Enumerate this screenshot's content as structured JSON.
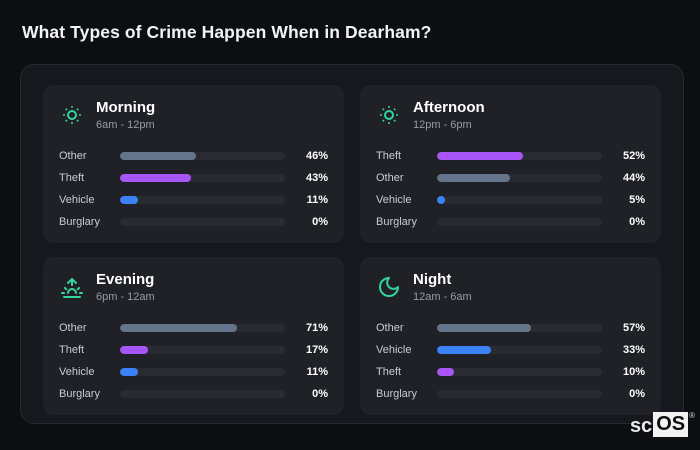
{
  "page": {
    "title": "What Types of Crime Happen When in Dearham?"
  },
  "brand": {
    "prefix": "sc",
    "suffix": "OS",
    "reg": "®"
  },
  "colors": {
    "accent": "#34d399",
    "other": "#64748b",
    "theft": "#a855f7",
    "vehicle": "#3b82f6",
    "track": "#292b31",
    "card_bg": "#1f2126",
    "panel_bg": "#17181d",
    "page_bg": "#0d0e12"
  },
  "panels": [
    {
      "title": "Morning",
      "range": "6am - 12pm",
      "icon": "sun-dim-icon",
      "rows": [
        {
          "label": "Other",
          "value": 46,
          "pct": "46%",
          "color_key": "other"
        },
        {
          "label": "Theft",
          "value": 43,
          "pct": "43%",
          "color_key": "theft"
        },
        {
          "label": "Vehicle",
          "value": 11,
          "pct": "11%",
          "color_key": "vehicle"
        },
        {
          "label": "Burglary",
          "value": 0,
          "pct": "0%",
          "color_key": "other"
        }
      ]
    },
    {
      "title": "Afternoon",
      "range": "12pm - 6pm",
      "icon": "sun-dim-icon",
      "rows": [
        {
          "label": "Theft",
          "value": 52,
          "pct": "52%",
          "color_key": "theft"
        },
        {
          "label": "Other",
          "value": 44,
          "pct": "44%",
          "color_key": "other"
        },
        {
          "label": "Vehicle",
          "value": 5,
          "pct": "5%",
          "color_key": "vehicle"
        },
        {
          "label": "Burglary",
          "value": 0,
          "pct": "0%",
          "color_key": "other"
        }
      ]
    },
    {
      "title": "Evening",
      "range": "6pm - 12am",
      "icon": "sunrise-icon",
      "rows": [
        {
          "label": "Other",
          "value": 71,
          "pct": "71%",
          "color_key": "other"
        },
        {
          "label": "Theft",
          "value": 17,
          "pct": "17%",
          "color_key": "theft"
        },
        {
          "label": "Vehicle",
          "value": 11,
          "pct": "11%",
          "color_key": "vehicle"
        },
        {
          "label": "Burglary",
          "value": 0,
          "pct": "0%",
          "color_key": "other"
        }
      ]
    },
    {
      "title": "Night",
      "range": "12am - 6am",
      "icon": "moon-icon",
      "rows": [
        {
          "label": "Other",
          "value": 57,
          "pct": "57%",
          "color_key": "other"
        },
        {
          "label": "Vehicle",
          "value": 33,
          "pct": "33%",
          "color_key": "vehicle"
        },
        {
          "label": "Theft",
          "value": 10,
          "pct": "10%",
          "color_key": "theft"
        },
        {
          "label": "Burglary",
          "value": 0,
          "pct": "0%",
          "color_key": "other"
        }
      ]
    }
  ],
  "chart_data": [
    {
      "type": "bar",
      "orientation": "horizontal",
      "title": "Morning",
      "subtitle": "6am - 12pm",
      "categories": [
        "Other",
        "Theft",
        "Vehicle",
        "Burglary"
      ],
      "values": [
        46,
        43,
        11,
        0
      ],
      "unit": "%",
      "xlim": [
        0,
        100
      ],
      "grid": false,
      "legend": false
    },
    {
      "type": "bar",
      "orientation": "horizontal",
      "title": "Afternoon",
      "subtitle": "12pm - 6pm",
      "categories": [
        "Theft",
        "Other",
        "Vehicle",
        "Burglary"
      ],
      "values": [
        52,
        44,
        5,
        0
      ],
      "unit": "%",
      "xlim": [
        0,
        100
      ],
      "grid": false,
      "legend": false
    },
    {
      "type": "bar",
      "orientation": "horizontal",
      "title": "Evening",
      "subtitle": "6pm - 12am",
      "categories": [
        "Other",
        "Theft",
        "Vehicle",
        "Burglary"
      ],
      "values": [
        71,
        17,
        11,
        0
      ],
      "unit": "%",
      "xlim": [
        0,
        100
      ],
      "grid": false,
      "legend": false
    },
    {
      "type": "bar",
      "orientation": "horizontal",
      "title": "Night",
      "subtitle": "12am - 6am",
      "categories": [
        "Other",
        "Vehicle",
        "Theft",
        "Burglary"
      ],
      "values": [
        57,
        33,
        10,
        0
      ],
      "unit": "%",
      "xlim": [
        0,
        100
      ],
      "grid": false,
      "legend": false
    }
  ]
}
